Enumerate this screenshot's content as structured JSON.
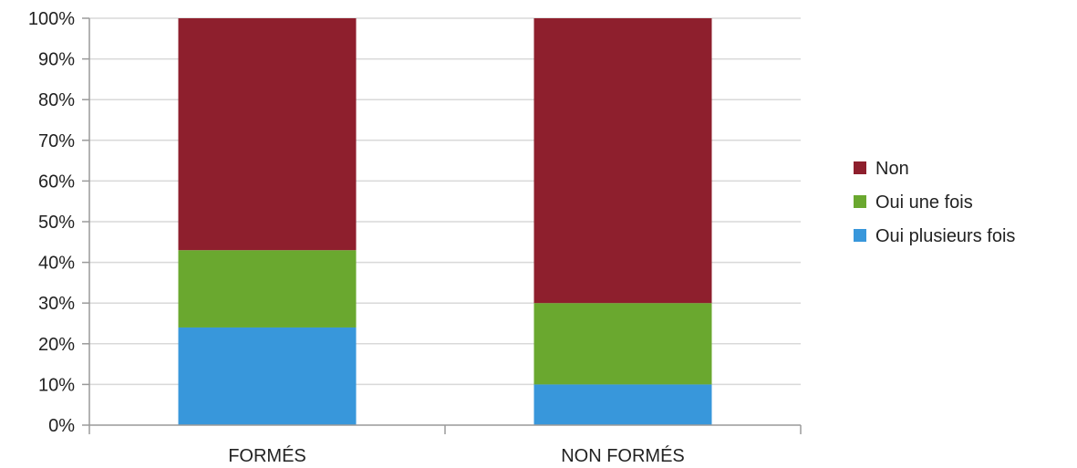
{
  "chart_data": {
    "type": "bar",
    "stacked": true,
    "categories": [
      "FORMÉS",
      "NON FORMÉS"
    ],
    "series": [
      {
        "name": "Oui plusieurs fois",
        "values": [
          24,
          10
        ],
        "color": "#3897db"
      },
      {
        "name": "Oui une fois",
        "values": [
          19,
          20
        ],
        "color": "#6aa82f"
      },
      {
        "name": "Non",
        "values": [
          57,
          70
        ],
        "color": "#8e1f2d"
      }
    ],
    "legend_order": [
      "Non",
      "Oui une fois",
      "Oui plusieurs fois"
    ],
    "y_ticks": [
      "0%",
      "10%",
      "20%",
      "30%",
      "40%",
      "50%",
      "60%",
      "70%",
      "80%",
      "90%",
      "100%"
    ],
    "ylim": [
      0,
      100
    ],
    "y_unit": "%",
    "grid": true,
    "grid_color": "#d9d9d9",
    "legend_position": "right"
  }
}
